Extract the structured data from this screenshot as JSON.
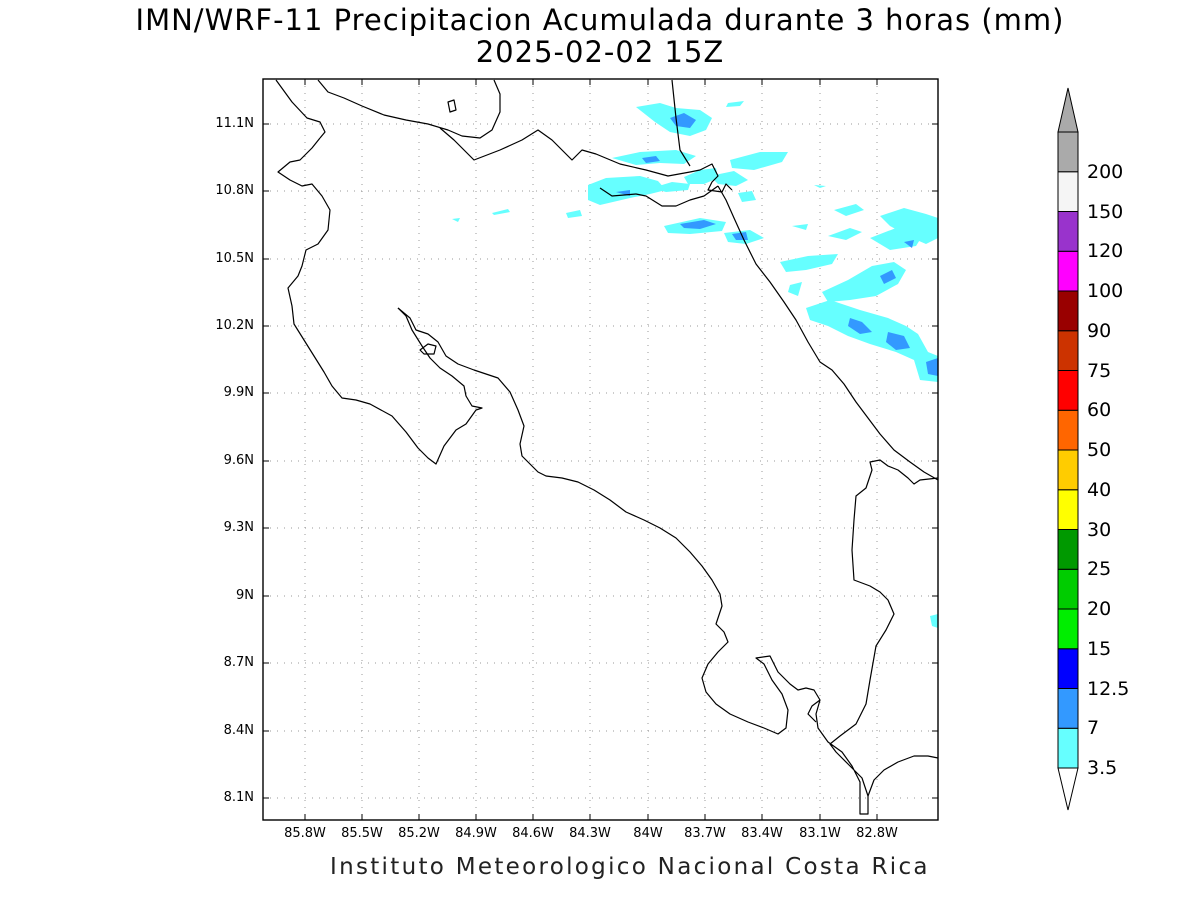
{
  "title": {
    "line1": "IMN/WRF-11 Precipitacion Acumulada durante 3 horas (mm)",
    "line2": "2025-02-02 15Z"
  },
  "footer": "Instituto Meteorologico Nacional Costa Rica",
  "map": {
    "lat_labels": [
      "11.1N",
      "10.8N",
      "10.5N",
      "10.2N",
      "9.9N",
      "9.6N",
      "9.3N",
      "9N",
      "8.7N",
      "8.4N",
      "8.1N"
    ],
    "lon_labels": [
      "85.8W",
      "85.5W",
      "85.2W",
      "84.9W",
      "84.6W",
      "84.3W",
      "84W",
      "83.7W",
      "83.4W",
      "83.1W",
      "82.8W"
    ],
    "grid": "dotted",
    "coastline_color": "#000000"
  },
  "colorbar": {
    "unit": "mm",
    "levels": [
      "3.5",
      "7",
      "12.5",
      "15",
      "20",
      "25",
      "30",
      "40",
      "50",
      "60",
      "75",
      "90",
      "100",
      "120",
      "150",
      "200"
    ],
    "colors": [
      "#66ffff",
      "#3399ff",
      "#0000ff",
      "#00ee00",
      "#00cc00",
      "#009900",
      "#ffff00",
      "#ffcc00",
      "#ff6600",
      "#ff0000",
      "#cc3300",
      "#990000",
      "#ff00ff",
      "#9933cc",
      "#f5f5f5",
      "#aaaaaa"
    ],
    "under_color": "#ffffff",
    "over_color": "#aaaaaa"
  },
  "precip_colors": {
    "light": "#66ffff",
    "moderate": "#3399ff"
  }
}
